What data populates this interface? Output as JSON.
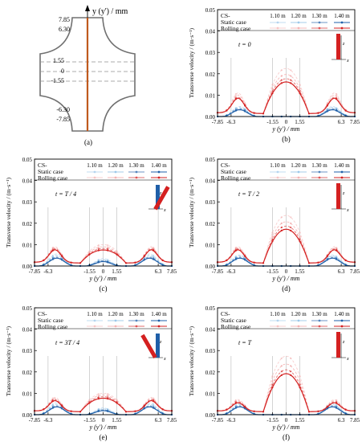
{
  "colors": {
    "static_dark": "#1f5fa8",
    "static_light": "#8fc0e6",
    "rolling_dark": "#d42020",
    "rolling_light": "#f2a8a8",
    "grid": "#b8b8b8",
    "rod": "#c05a1e",
    "cross_outline": "#707070"
  },
  "panel_a": {
    "axis_label": "y (y') / mm",
    "ticks": [
      "7.85",
      "6.30",
      "1.55",
      "0",
      "-1.55",
      "-6.30",
      "-7.85"
    ],
    "caption": "(a)"
  },
  "legend": {
    "cs_label": "CS-",
    "columns": [
      "1.10 m",
      "1.20 m",
      "1.30 m",
      "1.40 m"
    ],
    "static_label": "Static case",
    "rolling_label": "Rolling case"
  },
  "axes": {
    "ylabel": "Transverse velocity / (m·s⁻¹)",
    "xlabel": "y (y') / mm",
    "yticks": [
      "0.00",
      "0.01",
      "0.02",
      "0.03",
      "0.04",
      "0.05"
    ],
    "xticks": [
      "-7.85",
      "-6.3",
      "-1.55",
      "0",
      "1.55",
      "6.3",
      "7.85"
    ]
  },
  "chart_data": [
    {
      "id": "b",
      "type": "line",
      "caption": "(b)",
      "time_label": "t = 0",
      "xlabel": "y (y') / mm",
      "ylabel": "Transverse velocity / (m·s⁻¹)",
      "xlim": [
        -7.85,
        7.85
      ],
      "ylim": [
        0,
        0.05
      ],
      "x": [
        -7.85,
        -6.3,
        -1.55,
        0,
        1.55,
        6.3,
        7.85
      ],
      "orientation_deg": 0,
      "rolling_peaks": {
        "side": [
          0.0095,
          0.0085,
          0.0075,
          0.007
        ],
        "center": [
          0.0213,
          0.0185,
          0.0165,
          0.015
        ]
      },
      "static_peaks": {
        "side": [
          0.005,
          0.0045,
          0.004,
          0.0035
        ],
        "center": [
          0.0,
          0.0,
          0.0,
          0.0
        ]
      }
    },
    {
      "id": "c",
      "type": "line",
      "caption": "(c)",
      "time_label": "t = T / 4",
      "xlabel": "y (y') / mm",
      "ylabel": "Transverse velocity / (m·s⁻¹)",
      "xlim": [
        -7.85,
        7.85
      ],
      "ylim": [
        0,
        0.05
      ],
      "x": [
        -7.85,
        -6.3,
        -1.55,
        0,
        1.55,
        6.3,
        7.85
      ],
      "orientation_deg": 30,
      "rolling_peaks": {
        "side": [
          0.0075,
          0.007,
          0.0065,
          0.006
        ],
        "center": [
          0.0088,
          0.0078,
          0.007,
          0.0063
        ]
      },
      "static_peaks": {
        "side": [
          0.006,
          0.0052,
          0.0045,
          0.004
        ],
        "center": [
          0.0038,
          0.0032,
          0.0028,
          0.0024
        ]
      }
    },
    {
      "id": "d",
      "type": "line",
      "caption": "(d)",
      "time_label": "t = T / 2",
      "xlabel": "y (y') / mm",
      "ylabel": "Transverse velocity / (m·s⁻¹)",
      "xlim": [
        -7.85,
        7.85
      ],
      "ylim": [
        0,
        0.05
      ],
      "x": [
        -7.85,
        -6.3,
        -1.55,
        0,
        1.55,
        6.3,
        7.85
      ],
      "orientation_deg": 0,
      "rolling_peaks": {
        "side": [
          0.0075,
          0.007,
          0.0065,
          0.006
        ],
        "center": [
          0.0225,
          0.0195,
          0.0175,
          0.016
        ]
      },
      "static_peaks": {
        "side": [
          0.0055,
          0.005,
          0.0045,
          0.004
        ],
        "center": [
          0.0,
          0.0,
          0.0,
          0.0
        ]
      }
    },
    {
      "id": "e",
      "type": "line",
      "caption": "(e)",
      "time_label": "t = 3T / 4",
      "xlabel": "y (y') / mm",
      "ylabel": "Transverse velocity / (m·s⁻¹)",
      "xlim": [
        -7.85,
        7.85
      ],
      "ylim": [
        0,
        0.05
      ],
      "x": [
        -7.85,
        -6.3,
        -1.55,
        0,
        1.55,
        6.3,
        7.85
      ],
      "orientation_deg": -30,
      "rolling_peaks": {
        "side": [
          0.0065,
          0.006,
          0.0055,
          0.005
        ],
        "center": [
          0.0088,
          0.008,
          0.0072,
          0.0065
        ]
      },
      "static_peaks": {
        "side": [
          0.006,
          0.0052,
          0.0045,
          0.004
        ],
        "center": [
          0.0035,
          0.003,
          0.0026,
          0.0022
        ]
      }
    },
    {
      "id": "f",
      "type": "line",
      "caption": "(f)",
      "time_label": "t = T",
      "xlabel": "y (y') / mm",
      "ylabel": "Transverse velocity / (m·s⁻¹)",
      "xlim": [
        -7.85,
        7.85
      ],
      "ylim": [
        0,
        0.05
      ],
      "x": [
        -7.85,
        -6.3,
        -1.55,
        0,
        1.55,
        6.3,
        7.85
      ],
      "orientation_deg": 0,
      "rolling_peaks": {
        "side": [
          0.0055,
          0.005,
          0.0045,
          0.004
        ],
        "center": [
          0.0262,
          0.0225,
          0.0198,
          0.018
        ]
      },
      "static_peaks": {
        "side": [
          0.0055,
          0.005,
          0.0045,
          0.004
        ],
        "center": [
          0.0,
          0.0,
          0.0,
          0.0
        ]
      }
    }
  ]
}
